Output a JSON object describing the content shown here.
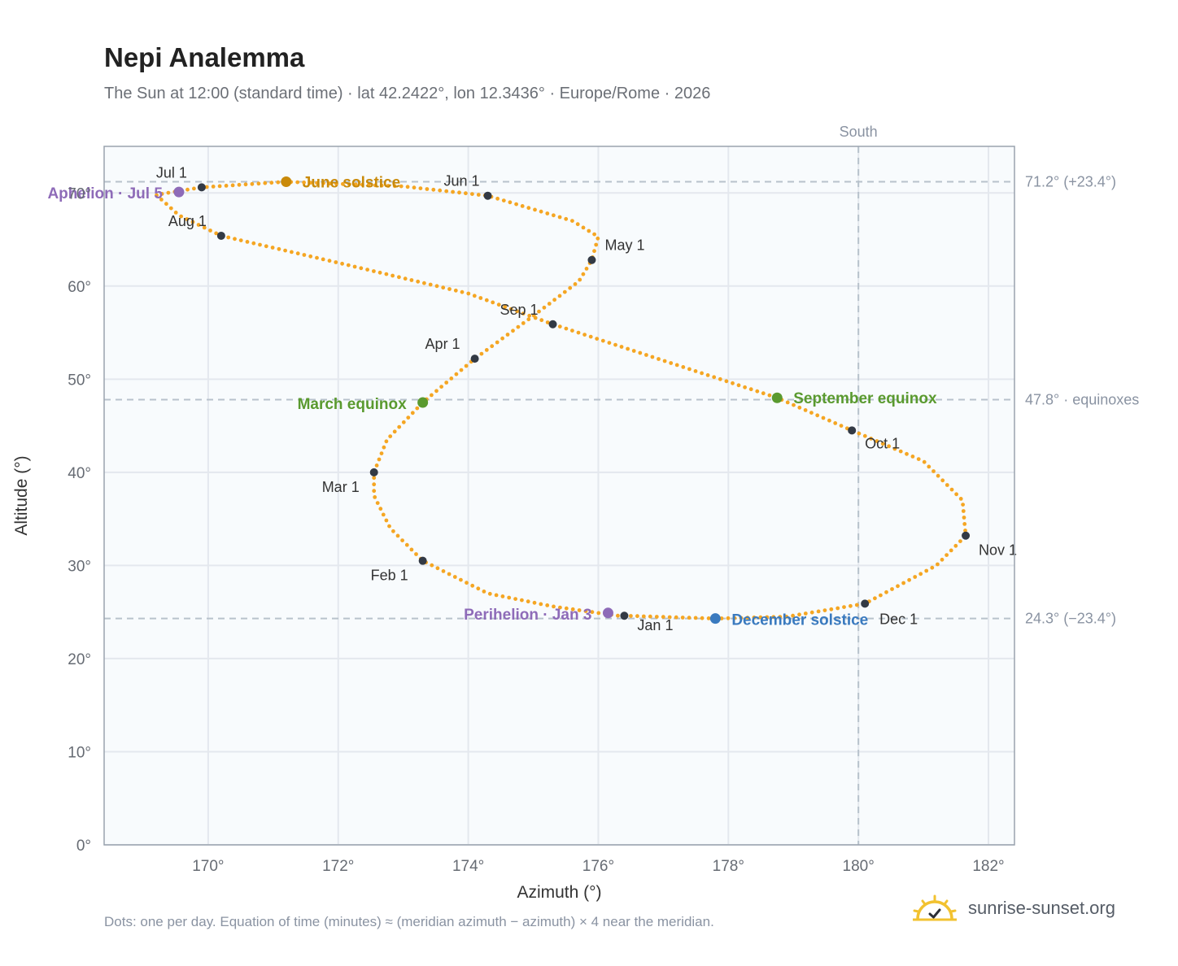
{
  "title": "Nepi Analemma",
  "subtitle": "The Sun at 12:00 (standard time) · lat 42.2422°, lon 12.3436° · Europe/Rome · 2026",
  "footnote": "Dots: one per day. Equation of time (minutes) ≈ (meridian azimuth − azimuth) × 4 near the meridian.",
  "brand": {
    "text": "sunrise-sunset.org",
    "icon": "sun-logo-icon"
  },
  "colors": {
    "path": "#f5a623",
    "month_dot": "#333a45",
    "june": "#c98a0a",
    "equinox": "#5a9a2f",
    "december": "#3a7abf",
    "apsis": "#8e6bb8",
    "grid": "#e4e8ee",
    "ref_line": "#b8c2cc",
    "plot_bg": "#f8fbfd",
    "frame": "#9aa3ae"
  },
  "chart_data": {
    "type": "scatter",
    "title": "Nepi Analemma",
    "xlabel": "Azimuth (°)",
    "ylabel": "Altitude (°)",
    "xlim": [
      168.4,
      182.4
    ],
    "ylim": [
      0,
      75
    ],
    "xticks": [
      170,
      172,
      174,
      176,
      178,
      180,
      182
    ],
    "yticks": [
      0,
      10,
      20,
      30,
      40,
      50,
      60,
      70
    ],
    "tick_suffix": "°",
    "grid": true,
    "meridian": {
      "azimuth": 180,
      "label": "South"
    },
    "reference_lines": [
      {
        "altitude": 71.2,
        "label": "71.2° (+23.4°)"
      },
      {
        "altitude": 47.8,
        "label": "47.8° · equinoxes"
      },
      {
        "altitude": 24.3,
        "label": "24.3° (−23.4°)"
      }
    ],
    "path_series": {
      "name": "Sun position at 12:00",
      "points": [
        [
          176.3,
          24.6
        ],
        [
          175.3,
          25.6
        ],
        [
          174.3,
          27.0
        ],
        [
          173.3,
          30.5
        ],
        [
          172.8,
          34.0
        ],
        [
          172.55,
          37.5
        ],
        [
          172.55,
          40.0
        ],
        [
          172.75,
          43.5
        ],
        [
          173.3,
          47.5
        ],
        [
          174.1,
          52.2
        ],
        [
          175.0,
          56.8
        ],
        [
          175.7,
          60.5
        ],
        [
          175.9,
          62.8
        ],
        [
          176.0,
          65.3
        ],
        [
          175.6,
          67.0
        ],
        [
          174.3,
          69.7
        ],
        [
          173.0,
          70.7
        ],
        [
          171.2,
          71.2
        ],
        [
          169.9,
          70.6
        ],
        [
          169.2,
          69.8
        ],
        [
          169.55,
          67.6
        ],
        [
          170.2,
          65.4
        ],
        [
          172.0,
          62.5
        ],
        [
          174.0,
          59.2
        ],
        [
          175.3,
          55.9
        ],
        [
          177.0,
          52.0
        ],
        [
          178.75,
          48.0
        ],
        [
          179.9,
          44.5
        ],
        [
          181.0,
          41.2
        ],
        [
          181.6,
          37.0
        ],
        [
          181.65,
          33.2
        ],
        [
          181.2,
          30.0
        ],
        [
          180.1,
          25.9
        ],
        [
          178.9,
          24.5
        ],
        [
          177.8,
          24.3
        ],
        [
          176.4,
          24.6
        ]
      ]
    },
    "month_markers": [
      {
        "label": "Jan 1",
        "azimuth": 176.4,
        "altitude": 24.6
      },
      {
        "label": "Feb 1",
        "azimuth": 173.3,
        "altitude": 30.5
      },
      {
        "label": "Mar 1",
        "azimuth": 172.55,
        "altitude": 40.0
      },
      {
        "label": "Apr 1",
        "azimuth": 174.1,
        "altitude": 52.2
      },
      {
        "label": "May 1",
        "azimuth": 175.9,
        "altitude": 62.8
      },
      {
        "label": "Jun 1",
        "azimuth": 174.3,
        "altitude": 69.7
      },
      {
        "label": "Jul 1",
        "azimuth": 169.9,
        "altitude": 70.6
      },
      {
        "label": "Aug 1",
        "azimuth": 170.2,
        "altitude": 65.4
      },
      {
        "label": "Sep 1",
        "azimuth": 175.3,
        "altitude": 55.9
      },
      {
        "label": "Oct 1",
        "azimuth": 179.9,
        "altitude": 44.5
      },
      {
        "label": "Nov 1",
        "azimuth": 181.65,
        "altitude": 33.2
      },
      {
        "label": "Dec 1",
        "azimuth": 180.1,
        "altitude": 25.9
      }
    ],
    "events": [
      {
        "label": "June solstice",
        "azimuth": 171.2,
        "altitude": 71.2,
        "color": "#c98a0a"
      },
      {
        "label": "March equinox",
        "azimuth": 173.3,
        "altitude": 47.5,
        "color": "#5a9a2f"
      },
      {
        "label": "September equinox",
        "azimuth": 178.75,
        "altitude": 48.0,
        "color": "#5a9a2f"
      },
      {
        "label": "December solstice",
        "azimuth": 177.8,
        "altitude": 24.3,
        "color": "#3a7abf"
      },
      {
        "label": "Aphelion · Jul 5",
        "azimuth": 169.55,
        "altitude": 70.1,
        "color": "#8e6bb8"
      },
      {
        "label": "Perihelion · Jan 3",
        "azimuth": 176.15,
        "altitude": 24.9,
        "color": "#8e6bb8"
      }
    ]
  }
}
